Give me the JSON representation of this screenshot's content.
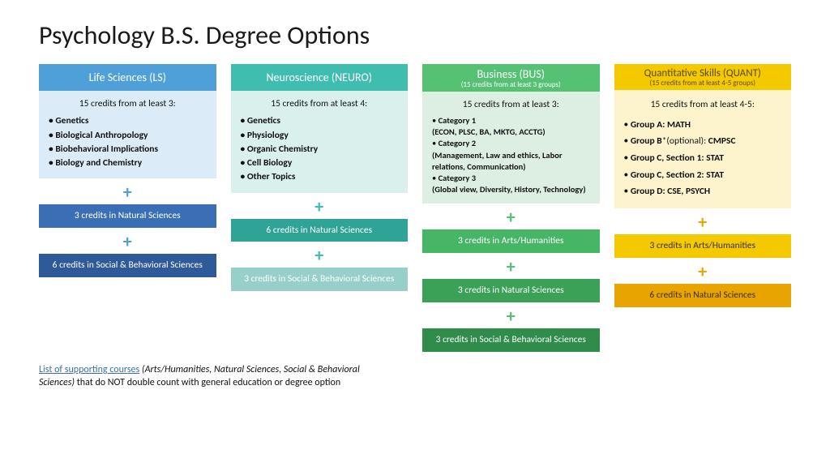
{
  "title": "Psychology B.S. Degree Options",
  "columns": [
    {
      "id": "ls",
      "header": "Life Sciences (LS)",
      "header_bg": "#4f9fd9",
      "header_fg": "#ffffff",
      "body_bg": "#dbecf8",
      "lead": "15 credits from at least 3:",
      "items": [
        "Genetics",
        "Biological Anthropology",
        "Biobehavioral Implications",
        "Biology and Chemistry"
      ],
      "items_bold": true,
      "plus_color": "#4f9fd9",
      "bars": [
        {
          "text": "3 credits in Natural Sciences",
          "bg": "#3b6fb5",
          "fg": "#ffffff"
        },
        {
          "text": "6 credits in Social & Behavioral Sciences",
          "bg": "#2f5a99",
          "fg": "#ffffff"
        }
      ]
    },
    {
      "id": "neuro",
      "header": "Neuroscience (NEURO)",
      "header_bg": "#3fbeb0",
      "header_fg": "#ffffff",
      "body_bg": "#d9f0ec",
      "lead": "15 credits from at least 4:",
      "items": [
        "Genetics",
        "Physiology",
        "Organic Chemistry",
        "Cell Biology",
        "Other Topics"
      ],
      "items_bold": true,
      "plus_color": "#3fbeb0",
      "bars": [
        {
          "text": "6 credits in Natural Sciences",
          "bg": "#2fa396",
          "fg": "#ffffff"
        },
        {
          "text": "3 credits in Social & Behavioral Sciences",
          "bg": "#96d0c8",
          "fg": "#ffffff"
        }
      ]
    },
    {
      "id": "bus",
      "header": "Business (BUS)",
      "header_sub": "(15 credits from at least 3 groups)",
      "header_bg": "#55c172",
      "header_fg": "#ffffff",
      "body_bg": "#dcefe2",
      "lead": "15 credits from at least 3:",
      "categories": [
        {
          "name": "Category 1",
          "desc": "(ECON, PLSC, BA, MKTG, ACCTG)"
        },
        {
          "name": "Category 2",
          "desc": "(Management, Law and ethics, Labor relations, Communication)"
        },
        {
          "name": "Category 3",
          "desc": "(Global view, Diversity, History, Technology)"
        }
      ],
      "plus_color": "#55c172",
      "bars": [
        {
          "text": "3 credits in Arts/Humanities",
          "bg": "#47b566",
          "fg": "#ffffff"
        },
        {
          "text": "3 credits in Natural Sciences",
          "bg": "#3aa157",
          "fg": "#ffffff"
        },
        {
          "text": "3 credits in Social & Behavioral Sciences",
          "bg": "#2f8c4a",
          "fg": "#ffffff"
        }
      ]
    },
    {
      "id": "quant",
      "header": "Quantitative Skills (QUANT)",
      "header_sub": "(15 credits from at least 4-5 groups)",
      "header_bg": "#f4c900",
      "header_fg": "#5a4a00",
      "body_bg": "#fdf3cd",
      "lead": "15 credits from at least 4-5:",
      "quant_items": [
        {
          "label": "Group A:",
          "val": "MATH"
        },
        {
          "label": "Group B*(optional):",
          "val": "CMPSC",
          "label_plain": "Group B",
          "mid": "*(optional): "
        },
        {
          "label": "Group C, Section 1:",
          "val": "STAT"
        },
        {
          "label": "Group C, Section 2:",
          "val": "STAT"
        },
        {
          "label": "Group D:",
          "val": "CSE, PSYCH"
        }
      ],
      "plus_color": "#e8a400",
      "bars": [
        {
          "text": "3 credits in Arts/Humanities",
          "bg": "#f4c900",
          "fg": "#3a2f00"
        },
        {
          "text": "6 credits in Natural Sciences",
          "bg": "#e8a400",
          "fg": "#3a2f00"
        }
      ]
    }
  ],
  "footnote": {
    "link": "List of supporting courses",
    "italic": " (Arts/Humanities, Natural Sciences, Social & Behavioral Sciences)",
    "rest": " that do NOT double count with general education or degree option"
  }
}
